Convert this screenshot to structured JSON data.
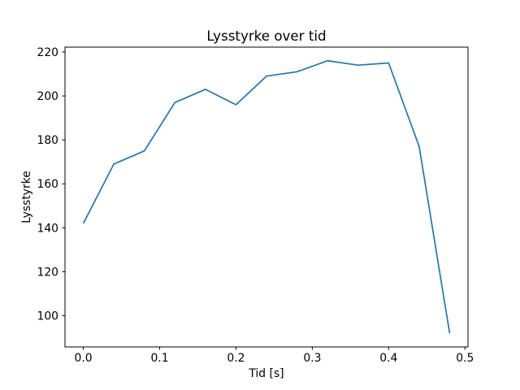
{
  "chart_data": {
    "type": "line",
    "title": "Lysstyrke over tid",
    "xlabel": "Tid [s]",
    "ylabel": "Lysstyrke",
    "x": [
      0.0,
      0.04,
      0.08,
      0.12,
      0.16,
      0.2,
      0.24,
      0.28,
      0.32,
      0.36,
      0.4,
      0.44,
      0.48
    ],
    "y": [
      142,
      169,
      175,
      197,
      203,
      196,
      209,
      211,
      216,
      214,
      215,
      177,
      92
    ],
    "xlim": [
      -0.024,
      0.504
    ],
    "ylim": [
      85.8,
      222.2
    ],
    "xticks": [
      0.0,
      0.1,
      0.2,
      0.3,
      0.4,
      0.5
    ],
    "xtick_labels": [
      "0.0",
      "0.1",
      "0.2",
      "0.3",
      "0.4",
      "0.5"
    ],
    "yticks": [
      100,
      120,
      140,
      160,
      180,
      200,
      220
    ],
    "ytick_labels": [
      "100",
      "120",
      "140",
      "160",
      "180",
      "200",
      "220"
    ],
    "line_color": "#1f77b4",
    "axis_color": "#000000",
    "background_color": "#ffffff",
    "grid": false,
    "legend": null
  }
}
